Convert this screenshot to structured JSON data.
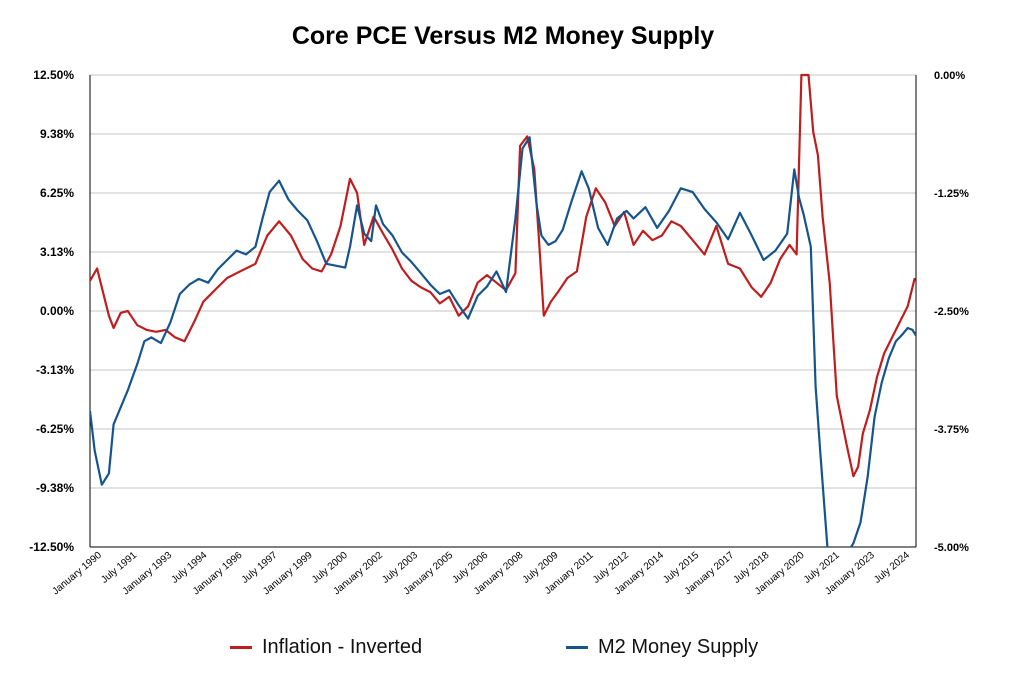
{
  "chart_data": {
    "type": "line",
    "title": "Core PCE Versus M2 Money Supply",
    "colors": {
      "inflation": "#bf1e1e",
      "m2": "#15558c",
      "grid": "#c4c4c4"
    },
    "y_left": {
      "ticks": [
        "12.50%",
        "9.38%",
        "6.25%",
        "3.13%",
        "0.00%",
        "-3.13%",
        "-6.25%",
        "-9.38%",
        "-12.50%"
      ],
      "lim": [
        -12.5,
        12.5
      ]
    },
    "y_right": {
      "ticks": [
        "0.00%",
        "-1.25%",
        "-2.50%",
        "-3.75%",
        "-5.00%"
      ],
      "lim": [
        -5.0,
        0.0
      ]
    },
    "x_ticks": [
      "January 1990",
      "July 1991",
      "January 1993",
      "July 1994",
      "January 1996",
      "July 1997",
      "January 1999",
      "July 2000",
      "January 2002",
      "July 2003",
      "January 2005",
      "July 2006",
      "January 2008",
      "July 2009",
      "January 2011",
      "July 2012",
      "January 2014",
      "July 2015",
      "January 2017",
      "July 2018",
      "January 2020",
      "July 2021",
      "January 2023",
      "July 2024"
    ],
    "x_range": [
      "January 1990",
      "July 2024"
    ],
    "grid": true,
    "legend_position": "bottom",
    "series": [
      {
        "name": "Inflation - Inverted",
        "color": "#bf1e1e",
        "axis": "right",
        "x": [
          1990.0,
          1990.3,
          1990.5,
          1990.8,
          1991.0,
          1991.3,
          1991.6,
          1992.0,
          1992.4,
          1992.8,
          1993.2,
          1993.6,
          1994.0,
          1994.4,
          1994.8,
          1995.0,
          1995.4,
          1995.8,
          1996.2,
          1996.6,
          1997.0,
          1997.5,
          1998.0,
          1998.5,
          1999.0,
          1999.4,
          1999.8,
          2000.2,
          2000.6,
          2001.0,
          2001.3,
          2001.6,
          2002.0,
          2002.4,
          2002.8,
          2003.2,
          2003.6,
          2004.0,
          2004.4,
          2004.8,
          2005.2,
          2005.6,
          2006.0,
          2006.4,
          2006.8,
          2007.2,
          2007.6,
          2008.0,
          2008.2,
          2008.5,
          2008.8,
          2009.0,
          2009.2,
          2009.5,
          2009.8,
          2010.2,
          2010.6,
          2011.0,
          2011.4,
          2011.8,
          2012.2,
          2012.6,
          2013.0,
          2013.4,
          2013.8,
          2014.2,
          2014.6,
          2015.0,
          2015.5,
          2016.0,
          2016.5,
          2017.0,
          2017.5,
          2018.0,
          2018.4,
          2018.8,
          2019.2,
          2019.6,
          2019.9,
          2020.1,
          2020.4,
          2020.6,
          2020.8,
          2021.0,
          2021.3,
          2021.6,
          2022.0,
          2022.3,
          2022.5,
          2022.7,
          2023.0,
          2023.3,
          2023.6,
          2024.0,
          2024.3,
          2024.6,
          2024.9
        ],
        "values": [
          -2.18,
          -2.05,
          -2.25,
          -2.55,
          -2.68,
          -2.52,
          -2.5,
          -2.65,
          -2.7,
          -2.72,
          -2.7,
          -2.78,
          -2.82,
          -2.62,
          -2.4,
          -2.35,
          -2.25,
          -2.15,
          -2.1,
          -2.05,
          -2.0,
          -1.7,
          -1.55,
          -1.7,
          -1.95,
          -2.05,
          -2.08,
          -1.9,
          -1.6,
          -1.1,
          -1.25,
          -1.8,
          -1.5,
          -1.68,
          -1.85,
          -2.05,
          -2.18,
          -2.25,
          -2.3,
          -2.42,
          -2.35,
          -2.55,
          -2.45,
          -2.2,
          -2.12,
          -2.2,
          -2.28,
          -2.1,
          -0.75,
          -0.65,
          -1.0,
          -1.75,
          -2.55,
          -2.4,
          -2.3,
          -2.15,
          -2.08,
          -1.5,
          -1.2,
          -1.35,
          -1.6,
          -1.45,
          -1.8,
          -1.65,
          -1.75,
          -1.7,
          -1.55,
          -1.6,
          -1.75,
          -1.9,
          -1.6,
          -2.0,
          -2.05,
          -2.25,
          -2.35,
          -2.2,
          -1.95,
          -1.8,
          -1.9,
          0.0,
          0.0,
          -0.6,
          -0.85,
          -1.5,
          -2.2,
          -3.4,
          -3.9,
          -4.25,
          -4.15,
          -3.8,
          -3.55,
          -3.2,
          -2.95,
          -2.75,
          -2.6,
          -2.45,
          -2.15
        ]
      },
      {
        "name": "M2 Money Supply",
        "color": "#15558c",
        "axis": "left",
        "x": [
          1990.0,
          1990.2,
          1990.5,
          1990.8,
          1991.0,
          1991.3,
          1991.6,
          1992.0,
          1992.3,
          1992.6,
          1993.0,
          1993.4,
          1993.8,
          1994.2,
          1994.6,
          1995.0,
          1995.4,
          1995.8,
          1996.2,
          1996.6,
          1997.0,
          1997.3,
          1997.6,
          1998.0,
          1998.4,
          1998.8,
          1999.2,
          1999.6,
          2000.0,
          2000.4,
          2000.8,
          2001.0,
          2001.3,
          2001.6,
          2001.9,
          2002.1,
          2002.4,
          2002.8,
          2003.2,
          2003.6,
          2004.0,
          2004.4,
          2004.8,
          2005.2,
          2005.6,
          2006.0,
          2006.4,
          2006.8,
          2007.2,
          2007.6,
          2008.0,
          2008.3,
          2008.6,
          2008.9,
          2009.1,
          2009.4,
          2009.7,
          2010.0,
          2010.4,
          2010.8,
          2011.1,
          2011.5,
          2011.9,
          2012.3,
          2012.7,
          2013.0,
          2013.5,
          2014.0,
          2014.5,
          2015.0,
          2015.5,
          2016.0,
          2016.5,
          2017.0,
          2017.5,
          2018.0,
          2018.5,
          2019.0,
          2019.5,
          2019.8,
          2020.0,
          2020.2,
          2020.5,
          2020.7,
          2020.9,
          2021.2,
          2021.4,
          2021.6,
          2021.8,
          2022.0,
          2022.3,
          2022.6,
          2022.9,
          2023.2,
          2023.5,
          2023.8,
          2024.1,
          2024.4,
          2024.6,
          2024.8,
          2024.95
        ],
        "values": [
          -5.3,
          -7.4,
          -9.2,
          -8.6,
          -6.0,
          -5.1,
          -4.2,
          -2.8,
          -1.6,
          -1.4,
          -1.7,
          -0.6,
          0.9,
          1.4,
          1.7,
          1.5,
          2.2,
          2.7,
          3.2,
          3.0,
          3.4,
          4.9,
          6.3,
          6.9,
          5.9,
          5.3,
          4.8,
          3.7,
          2.5,
          2.4,
          2.3,
          3.4,
          5.6,
          4.1,
          3.7,
          5.6,
          4.6,
          4.0,
          3.1,
          2.6,
          2.0,
          1.4,
          0.9,
          1.1,
          0.3,
          -0.4,
          0.8,
          1.3,
          2.1,
          1.0,
          4.9,
          8.6,
          9.2,
          5.6,
          4.0,
          3.5,
          3.7,
          4.3,
          5.9,
          7.4,
          6.5,
          4.4,
          3.5,
          4.9,
          5.3,
          4.9,
          5.5,
          4.4,
          5.3,
          6.5,
          6.3,
          5.4,
          4.7,
          3.8,
          5.2,
          4.0,
          2.7,
          3.2,
          4.1,
          7.5,
          6.0,
          5.1,
          3.4,
          -4.0,
          -7.5,
          -12.5,
          -13.0,
          -13.2,
          -13.1,
          -12.9,
          -12.3,
          -11.2,
          -8.8,
          -5.6,
          -3.8,
          -2.5,
          -1.6,
          -1.2,
          -0.9,
          -1.0,
          -1.3
        ]
      }
    ]
  }
}
